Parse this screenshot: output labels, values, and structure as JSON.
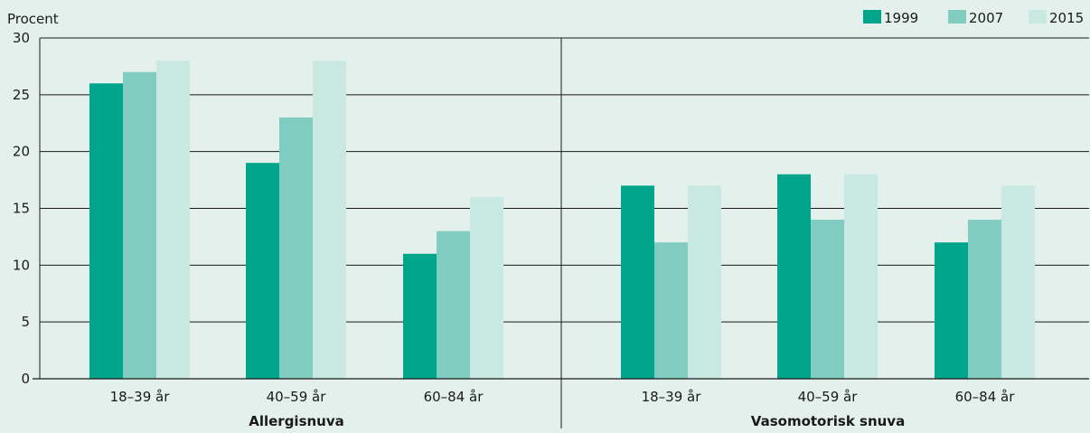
{
  "chart_data": {
    "type": "bar",
    "ylabel": "Procent",
    "ylim": [
      0,
      30
    ],
    "yticks": [
      0,
      5,
      10,
      15,
      20,
      25,
      30
    ],
    "grid": true,
    "legend_placement": "top-right",
    "colors": {
      "1999": "#00a58c",
      "2007": "#80ccc1",
      "2015": "#c8e8e2",
      "background": "#e3f0ec"
    },
    "series_names": [
      "1999",
      "2007",
      "2015"
    ],
    "groups": [
      {
        "name": "Allergisnuva",
        "categories": [
          "18–39 år",
          "40–59 år",
          "60–84 år"
        ],
        "series": [
          {
            "name": "1999",
            "values": [
              26,
              19,
              11
            ]
          },
          {
            "name": "2007",
            "values": [
              27,
              23,
              13
            ]
          },
          {
            "name": "2015",
            "values": [
              28,
              28,
              16
            ]
          }
        ]
      },
      {
        "name": "Vasomotorisk snuva",
        "categories": [
          "18–39 år",
          "40–59 år",
          "60–84 år"
        ],
        "series": [
          {
            "name": "1999",
            "values": [
              17,
              18,
              12
            ]
          },
          {
            "name": "2007",
            "values": [
              12,
              14,
              14
            ]
          },
          {
            "name": "2015",
            "values": [
              17,
              18,
              17
            ]
          }
        ]
      }
    ]
  }
}
